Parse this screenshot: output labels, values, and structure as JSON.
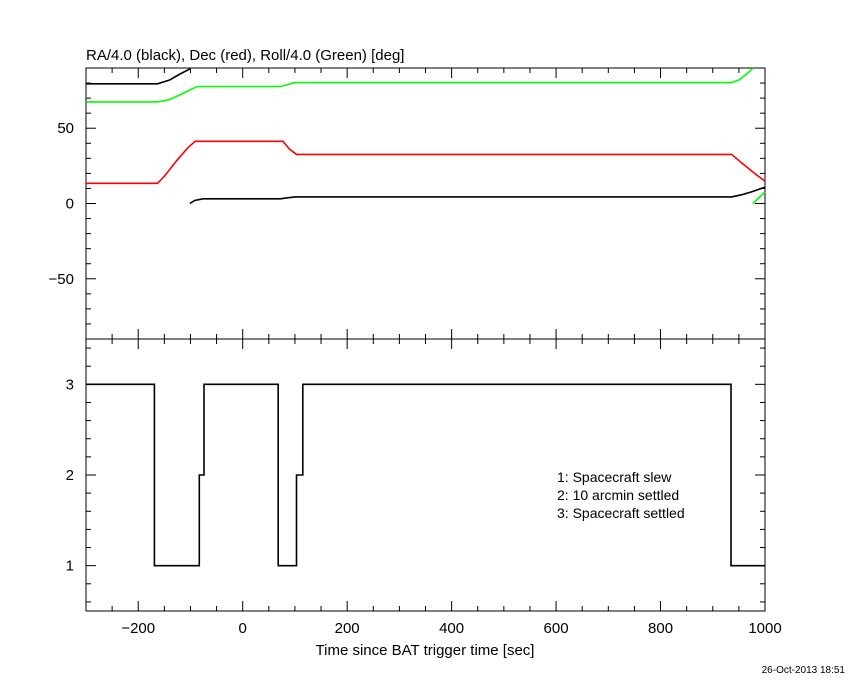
{
  "chart_data": [
    {
      "type": "line",
      "title": "RA/4.0 (black), Dec (red), Roll/4.0 (Green) [deg]",
      "xlim": [
        -300,
        1000
      ],
      "ylim": [
        -90,
        90
      ],
      "yticks": [
        -50,
        0,
        50
      ],
      "grid": false,
      "series": [
        {
          "color": "#000000",
          "points": [
            [
              -300,
              79.5
            ],
            [
              -163,
              79.5
            ],
            [
              -140,
              82
            ],
            [
              -120,
              86
            ],
            [
              -101,
              89.4
            ]
          ]
        },
        {
          "color": "#000000",
          "points": [
            [
              -101,
              0
            ],
            [
              -92,
              2
            ],
            [
              -76,
              3.1
            ],
            [
              72,
              3.1
            ],
            [
              86,
              3.8
            ],
            [
              100,
              4.4
            ],
            [
              936,
              4.4
            ],
            [
              955,
              5.8
            ],
            [
              975,
              7.8
            ],
            [
              1000,
              10.8
            ]
          ]
        },
        {
          "color": "#00ff00",
          "points": [
            [
              -300,
              67.5
            ],
            [
              -163,
              67.5
            ],
            [
              -140,
              69
            ],
            [
              -115,
              73
            ],
            [
              -95,
              76.5
            ],
            [
              -86,
              77.7
            ],
            [
              72,
              77.7
            ],
            [
              86,
              79
            ],
            [
              100,
              80.3
            ],
            [
              936,
              80.3
            ],
            [
              950,
              82
            ],
            [
              965,
              86
            ],
            [
              977,
              89.9
            ]
          ]
        },
        {
          "color": "#00ff00",
          "points": [
            [
              977,
              0
            ],
            [
              1000,
              7.7
            ]
          ]
        },
        {
          "color": "#ff0000",
          "points": [
            [
              -300,
              13.4
            ],
            [
              -163,
              13.4
            ],
            [
              -150,
              18
            ],
            [
              -125,
              29
            ],
            [
              -105,
              37
            ],
            [
              -91,
              41.3
            ],
            [
              77,
              41.3
            ],
            [
              90,
              36
            ],
            [
              103,
              32.6
            ],
            [
              936,
              32.6
            ],
            [
              955,
              27
            ],
            [
              980,
              20
            ],
            [
              1000,
              14.8
            ]
          ]
        }
      ]
    },
    {
      "type": "line",
      "step": true,
      "xlabel": "Time since BAT trigger time [sec]",
      "xlim": [
        -300,
        1000
      ],
      "ylim": [
        0.5,
        3.5
      ],
      "xticks": [
        -200,
        0,
        200,
        400,
        600,
        800,
        1000
      ],
      "xtick_labels": [
        "−200",
        "0",
        "200",
        "400",
        "600",
        "800",
        "1000"
      ],
      "yticks": [
        1,
        2,
        3
      ],
      "grid": false,
      "series": [
        {
          "color": "#000000",
          "points": [
            [
              -300,
              3
            ],
            [
              -169,
              3
            ],
            [
              -169,
              1
            ],
            [
              -83,
              1
            ],
            [
              -83,
              2
            ],
            [
              -74,
              2
            ],
            [
              -74,
              3
            ],
            [
              68,
              3
            ],
            [
              68,
              1
            ],
            [
              103,
              1
            ],
            [
              103,
              2
            ],
            [
              115,
              2
            ],
            [
              115,
              3
            ],
            [
              935,
              3
            ],
            [
              935,
              1
            ],
            [
              1000,
              1
            ]
          ]
        }
      ],
      "annotations": [
        "1: Spacecraft slew",
        "2: 10 arcmin settled",
        "3: Spacecraft settled"
      ]
    }
  ],
  "top_ytick_labels": [
    "−50",
    "0",
    "50"
  ],
  "bottom_ytick_labels": [
    "1",
    "2",
    "3"
  ],
  "timestamp": "26-Oct-2013 18:51"
}
